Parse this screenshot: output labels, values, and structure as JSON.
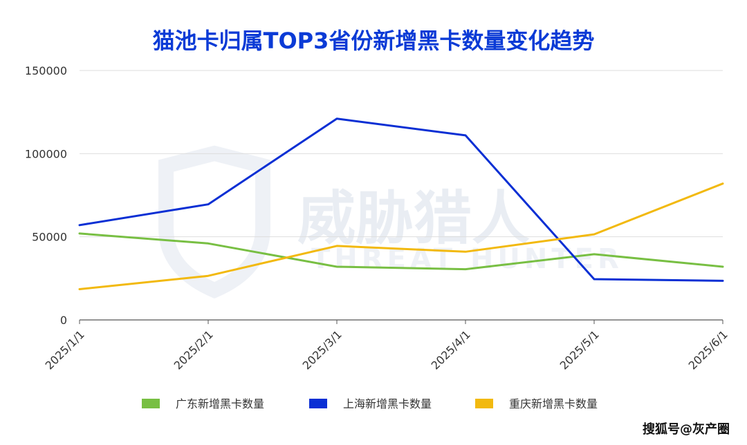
{
  "chart_data": {
    "type": "line",
    "title": "猫池卡归属TOP3省份新增黑卡数量变化趋势",
    "x": [
      "2025/1/1",
      "2025/2/1",
      "2025/3/1",
      "2025/4/1",
      "2025/5/1",
      "2025/6/1"
    ],
    "ylim": [
      0,
      150000
    ],
    "yticks": [
      0,
      50000,
      100000,
      150000
    ],
    "grid": true,
    "legend_position": "bottom",
    "series": [
      {
        "name": "广东新增黑卡数量",
        "color": "#78bf43",
        "values": [
          52000,
          46000,
          32000,
          30500,
          39500,
          32000
        ]
      },
      {
        "name": "上海新增黑卡数量",
        "color": "#0a2fd4",
        "values": [
          57000,
          69500,
          121000,
          111000,
          24500,
          23500
        ]
      },
      {
        "name": "重庆新增黑卡数量",
        "color": "#f2b90f",
        "values": [
          18500,
          26500,
          44500,
          41000,
          51500,
          82000
        ]
      }
    ]
  },
  "watermark": {
    "logo_text": "威胁猎人",
    "logo_subtext": "THREAT HUNTER",
    "source_label": "搜狐号@灰产圈"
  }
}
